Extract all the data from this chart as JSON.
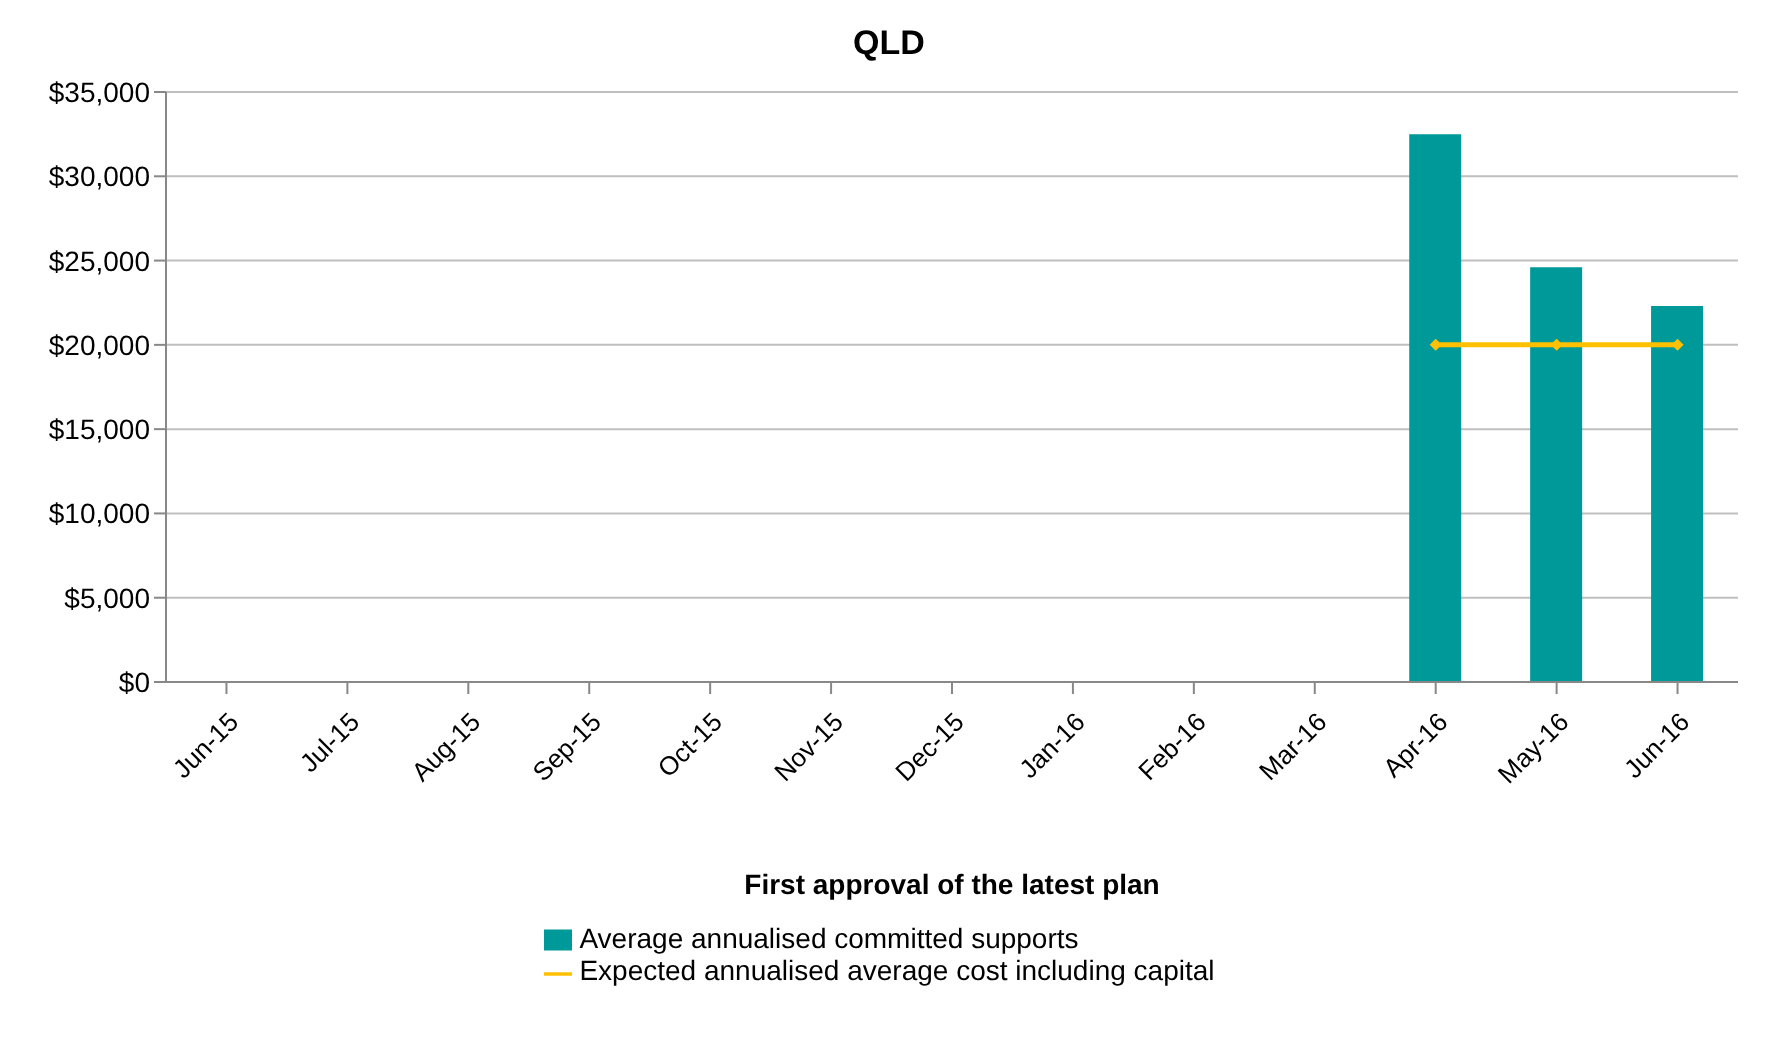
{
  "chart_data": {
    "type": "bar",
    "title": "QLD",
    "xlabel": "First approval of the latest plan",
    "categories": [
      "Jun-15",
      "Jul-15",
      "Aug-15",
      "Sep-15",
      "Oct-15",
      "Nov-15",
      "Dec-15",
      "Jan-16",
      "Feb-16",
      "Mar-16",
      "Apr-16",
      "May-16",
      "Jun-16"
    ],
    "series": [
      {
        "name": "Average annualised committed supports",
        "color": "#009999",
        "values": [
          null,
          null,
          null,
          null,
          null,
          null,
          null,
          null,
          null,
          null,
          32500,
          24600,
          22300
        ]
      },
      {
        "name": "Expected annualised average cost including capital",
        "type": "line",
        "color": "#ffc000",
        "marker": "diamond",
        "values": [
          null,
          null,
          null,
          null,
          null,
          null,
          null,
          null,
          null,
          null,
          20000,
          20000,
          20000
        ]
      }
    ],
    "ylim": [
      0,
      35000
    ],
    "yticks": [
      {
        "value": 0,
        "label": "$0"
      },
      {
        "value": 5000,
        "label": "$5,000"
      },
      {
        "value": 10000,
        "label": "$10,000"
      },
      {
        "value": 15000,
        "label": "$15,000"
      },
      {
        "value": 20000,
        "label": "$20,000"
      },
      {
        "value": 25000,
        "label": "$25,000"
      },
      {
        "value": 30000,
        "label": "$30,000"
      },
      {
        "value": 35000,
        "label": "$35,000"
      }
    ],
    "grid": "y",
    "legend": "bottom"
  }
}
